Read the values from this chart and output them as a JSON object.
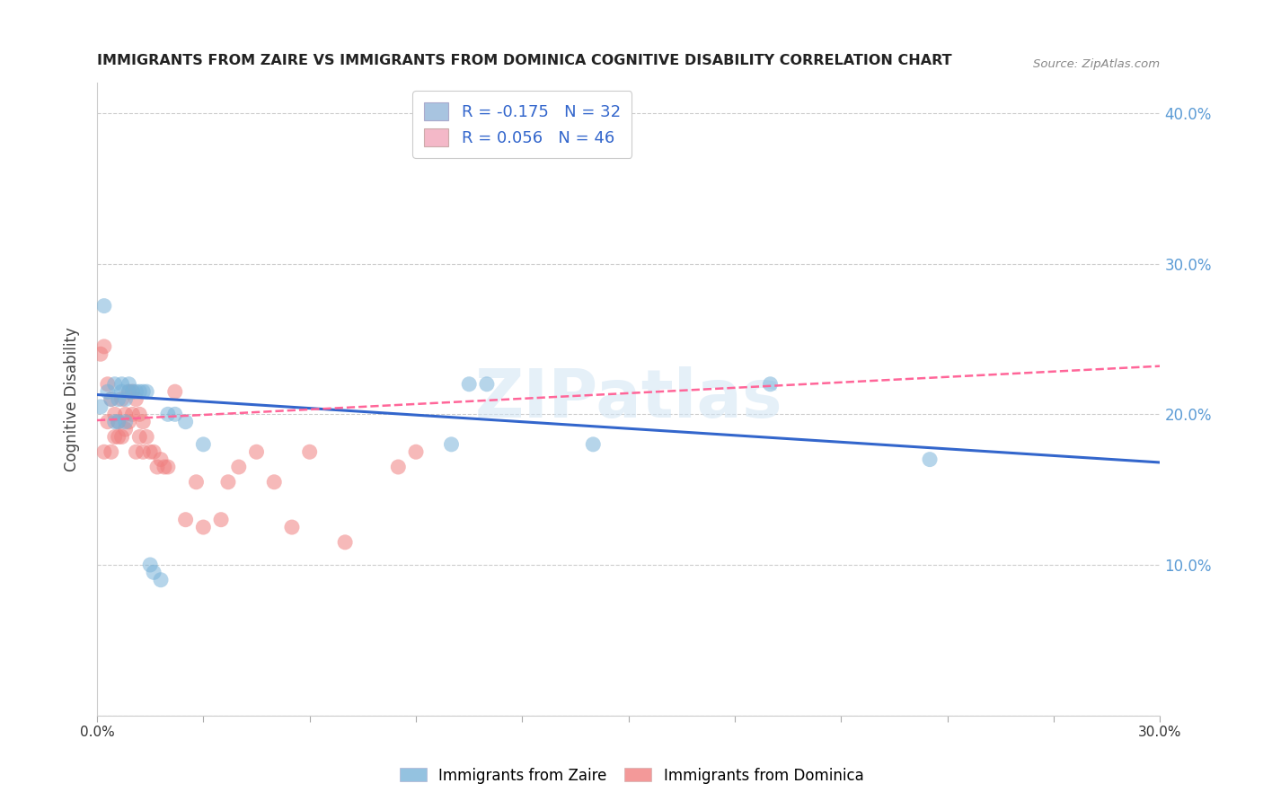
{
  "title": "IMMIGRANTS FROM ZAIRE VS IMMIGRANTS FROM DOMINICA COGNITIVE DISABILITY CORRELATION CHART",
  "source": "Source: ZipAtlas.com",
  "ylabel": "Cognitive Disability",
  "xlim": [
    0.0,
    0.3
  ],
  "ylim": [
    0.0,
    0.42
  ],
  "color_zaire": "#7ab3d9",
  "color_dominica": "#f08080",
  "trendline_zaire_color": "#3366cc",
  "trendline_dominica_color": "#ff6699",
  "legend1_color": "#a8c4e0",
  "legend2_color": "#f4b8c8",
  "watermark": "ZIPatlas",
  "zaire_x": [
    0.001,
    0.002,
    0.003,
    0.004,
    0.005,
    0.005,
    0.006,
    0.006,
    0.007,
    0.007,
    0.008,
    0.008,
    0.009,
    0.009,
    0.01,
    0.011,
    0.012,
    0.013,
    0.014,
    0.015,
    0.016,
    0.018,
    0.02,
    0.022,
    0.025,
    0.03,
    0.1,
    0.105,
    0.11,
    0.14,
    0.19,
    0.235
  ],
  "zaire_y": [
    0.205,
    0.272,
    0.215,
    0.21,
    0.22,
    0.195,
    0.21,
    0.195,
    0.22,
    0.215,
    0.21,
    0.195,
    0.22,
    0.215,
    0.215,
    0.215,
    0.215,
    0.215,
    0.215,
    0.1,
    0.095,
    0.09,
    0.2,
    0.2,
    0.195,
    0.18,
    0.18,
    0.22,
    0.22,
    0.18,
    0.22,
    0.17
  ],
  "dominica_x": [
    0.001,
    0.002,
    0.002,
    0.003,
    0.003,
    0.004,
    0.004,
    0.005,
    0.005,
    0.006,
    0.006,
    0.007,
    0.007,
    0.008,
    0.008,
    0.009,
    0.009,
    0.01,
    0.01,
    0.011,
    0.011,
    0.012,
    0.012,
    0.013,
    0.013,
    0.014,
    0.015,
    0.016,
    0.017,
    0.018,
    0.019,
    0.02,
    0.022,
    0.025,
    0.028,
    0.03,
    0.035,
    0.037,
    0.04,
    0.045,
    0.05,
    0.055,
    0.06,
    0.07,
    0.085,
    0.09
  ],
  "dominica_y": [
    0.24,
    0.175,
    0.245,
    0.22,
    0.195,
    0.21,
    0.175,
    0.2,
    0.185,
    0.195,
    0.185,
    0.21,
    0.185,
    0.2,
    0.19,
    0.215,
    0.195,
    0.215,
    0.2,
    0.21,
    0.175,
    0.2,
    0.185,
    0.195,
    0.175,
    0.185,
    0.175,
    0.175,
    0.165,
    0.17,
    0.165,
    0.165,
    0.215,
    0.13,
    0.155,
    0.125,
    0.13,
    0.155,
    0.165,
    0.175,
    0.155,
    0.125,
    0.175,
    0.115,
    0.165,
    0.175
  ],
  "trendline_zaire_x0": 0.0,
  "trendline_zaire_x1": 0.3,
  "trendline_zaire_y0": 0.213,
  "trendline_zaire_y1": 0.168,
  "trendline_dominica_x0": 0.0,
  "trendline_dominica_x1": 0.3,
  "trendline_dominica_y0": 0.196,
  "trendline_dominica_y1": 0.232
}
